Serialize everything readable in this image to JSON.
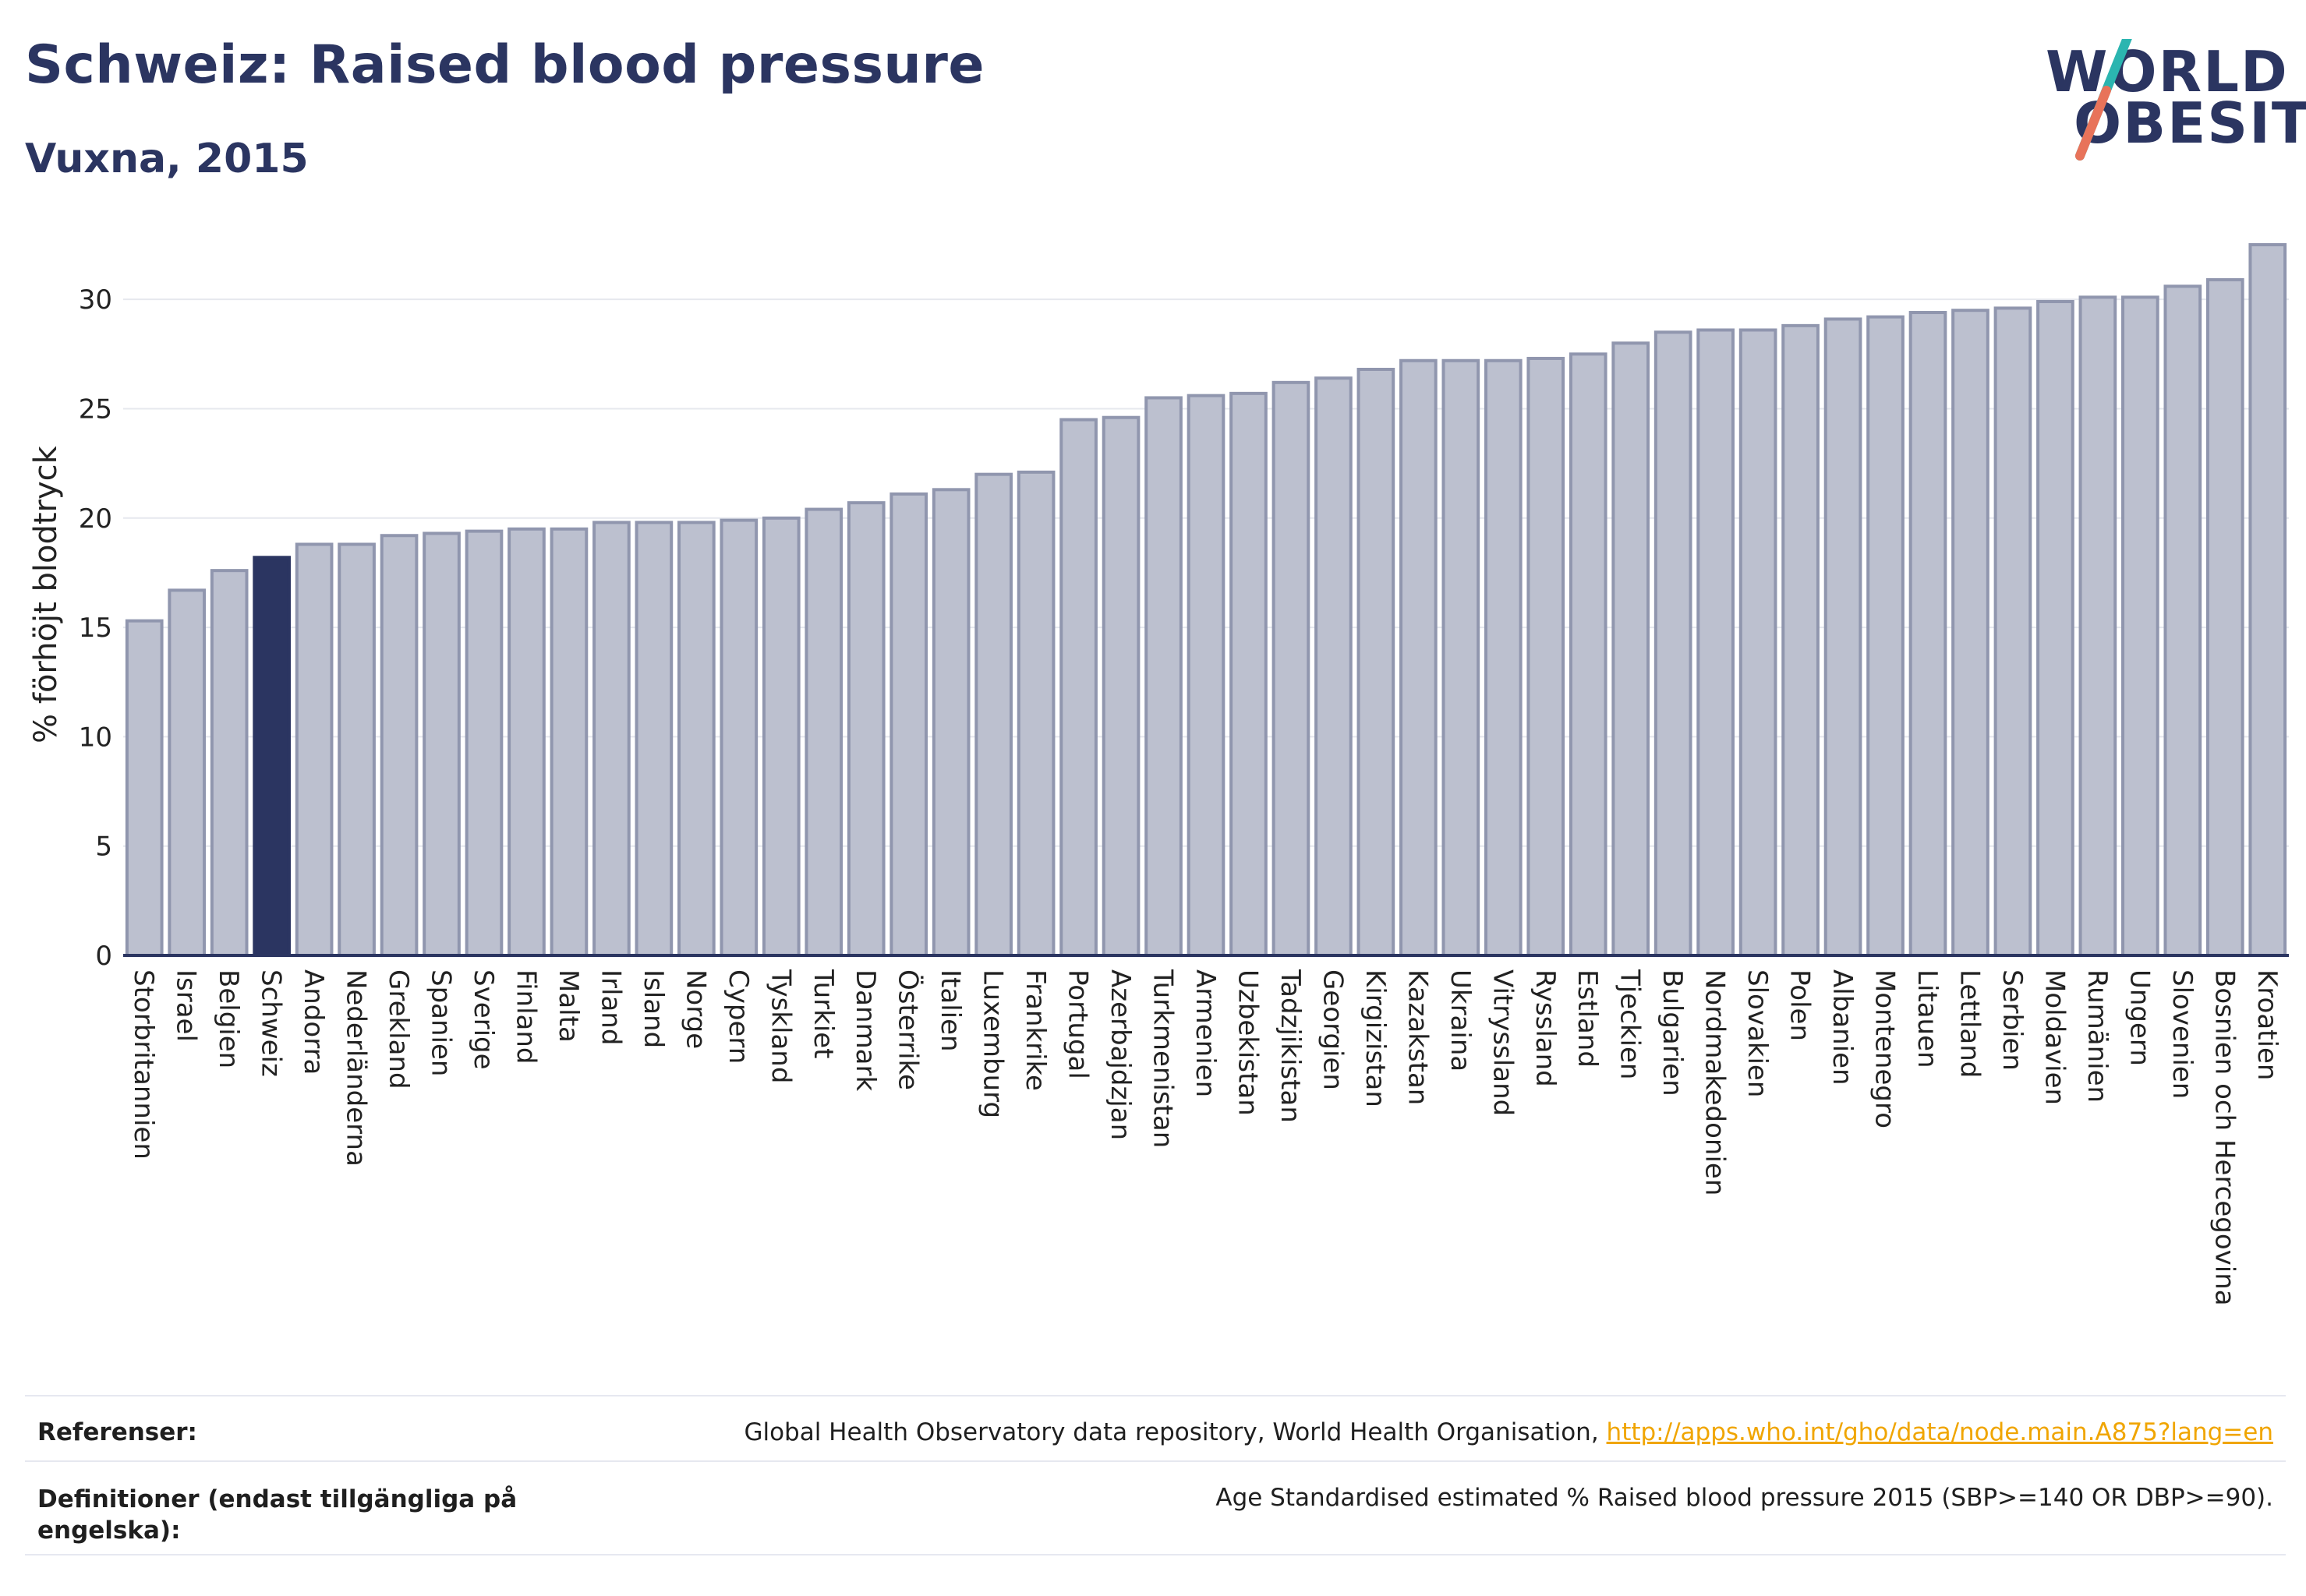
{
  "header": {
    "title": "Schweiz: Raised blood pressure",
    "subtitle": "Vuxna, 2015"
  },
  "logo": {
    "line1": "WORLD",
    "line2": "OBESITY"
  },
  "colors": {
    "bar": "#bcc0cf",
    "bar_stroke": "#9096ae",
    "highlight": "#2b3561",
    "title": "#2b3561",
    "grid": "#e6e8ee",
    "link": "#f0a500"
  },
  "chart_data": {
    "type": "bar",
    "ylabel": "% förhöjt blodtryck",
    "ylim": [
      0,
      33
    ],
    "yticks": [
      0,
      5,
      10,
      15,
      20,
      25,
      30
    ],
    "grid": true,
    "highlight": "Schweiz",
    "categories": [
      "Storbritannien",
      "Israel",
      "Belgien",
      "Schweiz",
      "Andorra",
      "Nederländerna",
      "Grekland",
      "Spanien",
      "Sverige",
      "Finland",
      "Malta",
      "Irland",
      "Island",
      "Norge",
      "Cypern",
      "Tyskland",
      "Turkiet",
      "Danmark",
      "Österrike",
      "Italien",
      "Luxemburg",
      "Frankrike",
      "Portugal",
      "Azerbajdzjan",
      "Turkmenistan",
      "Armenien",
      "Uzbekistan",
      "Tadzjikistan",
      "Georgien",
      "Kirgizistan",
      "Kazakstan",
      "Ukraina",
      "Vitryssland",
      "Ryssland",
      "Estland",
      "Tjeckien",
      "Bulgarien",
      "Nordmakedonien",
      "Slovakien",
      "Polen",
      "Albanien",
      "Montenegro",
      "Litauen",
      "Lettland",
      "Serbien",
      "Moldavien",
      "Rumänien",
      "Ungern",
      "Slovenien",
      "Bosnien och Hercegovina",
      "Kroatien"
    ],
    "values": [
      15.3,
      16.7,
      17.6,
      18.2,
      18.8,
      18.8,
      19.2,
      19.3,
      19.4,
      19.5,
      19.5,
      19.8,
      19.8,
      19.8,
      19.9,
      20.0,
      20.4,
      20.7,
      21.1,
      21.3,
      22.0,
      22.1,
      24.5,
      24.6,
      25.5,
      25.6,
      25.7,
      26.2,
      26.4,
      26.8,
      27.2,
      27.2,
      27.2,
      27.3,
      27.5,
      28.0,
      28.5,
      28.6,
      28.6,
      28.8,
      29.1,
      29.2,
      29.4,
      29.5,
      29.6,
      29.9,
      30.1,
      30.1,
      30.6,
      30.9,
      32.5
    ]
  },
  "footer": {
    "references_label": "Referenser:",
    "references_text": "Global Health Observatory data repository, World Health Organisation,",
    "references_link": "http://apps.who.int/gho/data/node.main.A875?lang=en",
    "definitions_label_line1": "Definitioner (endast tillgängliga på",
    "definitions_label_line2": "engelska):",
    "definitions_text": "Age Standardised estimated % Raised blood pressure 2015 (SBP>=140 OR DBP>=90)."
  }
}
